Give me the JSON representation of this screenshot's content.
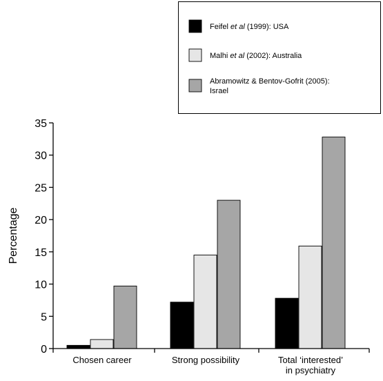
{
  "chart_data": {
    "type": "bar",
    "categories": [
      "Chosen career",
      "Strong possibility",
      "Total ‘interested’ in psychiatry"
    ],
    "category_lines": [
      [
        "Chosen career"
      ],
      [
        "Strong possibility"
      ],
      [
        "Total ‘interested’",
        "in psychiatry"
      ]
    ],
    "series": [
      {
        "name": "Feifel et al (1999): USA",
        "legend": {
          "pre": "Feifel ",
          "em": "et al",
          "post": " (1999): USA"
        },
        "color": "#000000",
        "values": [
          0.5,
          7.2,
          7.8
        ]
      },
      {
        "name": "Malhi et al (2002): Australia",
        "legend": {
          "pre": "Malhi ",
          "em": "et al",
          "post": " (2002): Australia"
        },
        "color": "#e6e6e6",
        "values": [
          1.4,
          14.5,
          15.9
        ]
      },
      {
        "name": "Abramowitz & Bentov-Gofrit (2005): Israel",
        "legend": {
          "pre": "Abramowitz & Bentov-Gofrit (2005):",
          "em": "",
          "post": "",
          "line2": "Israel"
        },
        "color": "#a6a6a6",
        "values": [
          9.7,
          23.0,
          32.8
        ]
      }
    ],
    "title": "",
    "xlabel": "",
    "ylabel": "Percentage",
    "ylim": [
      0,
      35
    ],
    "yticks": [
      "0",
      "5",
      "10",
      "15",
      "20",
      "25",
      "30",
      "35"
    ],
    "grid": false,
    "legend_position": "top-right"
  }
}
